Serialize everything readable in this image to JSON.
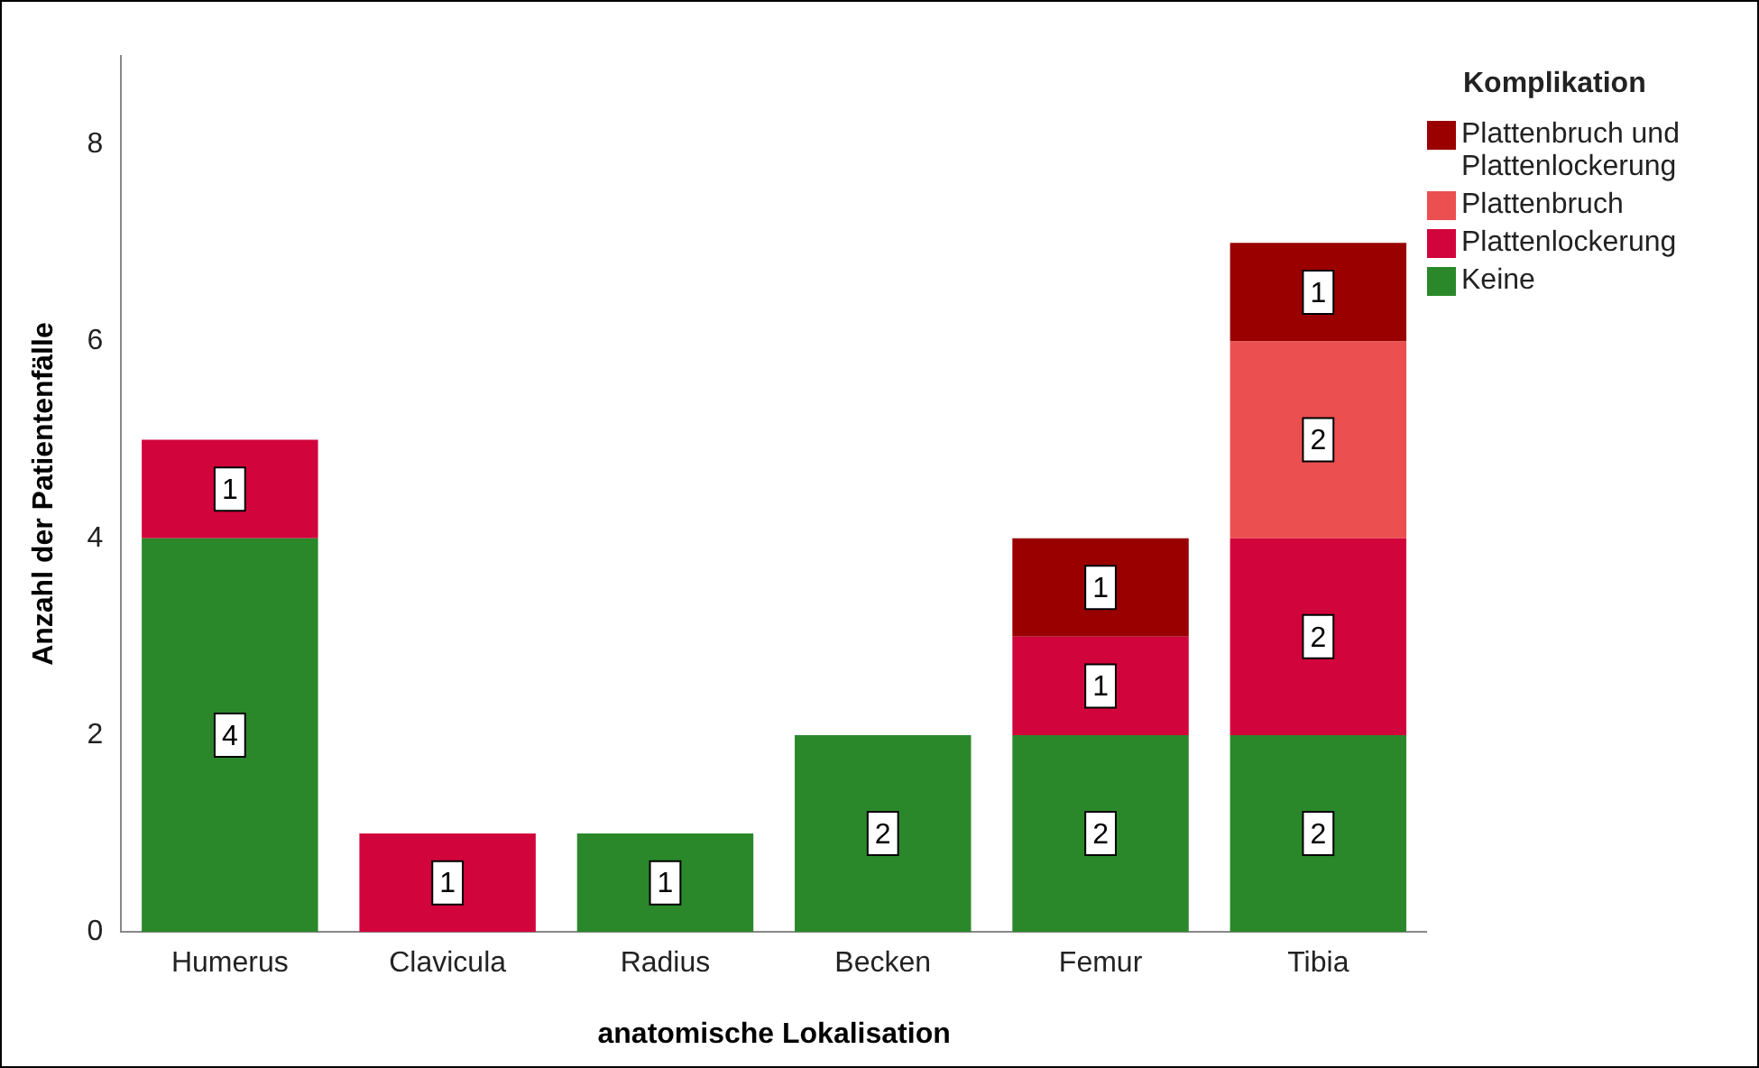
{
  "chart_data": {
    "type": "bar",
    "xlabel": "anatomische Lokalisation",
    "ylabel": "Anzahl der Patientenfälle",
    "legend_title": "Komplikation",
    "categories": [
      "Humerus",
      "Clavicula",
      "Radius",
      "Becken",
      "Femur",
      "Tibia"
    ],
    "series": [
      {
        "name": "Keine",
        "color": "#2a882a",
        "values": [
          4,
          null,
          1,
          2,
          2,
          2
        ]
      },
      {
        "name": "Plattenlockerung",
        "color": "#d2043c",
        "values": [
          1,
          1,
          null,
          null,
          1,
          2
        ]
      },
      {
        "name": "Plattenbruch",
        "color": "#eb4f4f",
        "values": [
          null,
          null,
          null,
          null,
          null,
          2
        ]
      },
      {
        "name": "Plattenbruch und Plattenlockerung",
        "color": "#9a0000",
        "values": [
          null,
          null,
          null,
          null,
          1,
          1
        ]
      }
    ],
    "stacked": true,
    "ylim": [
      0,
      8.9
    ],
    "yticks": [
      0,
      2,
      4,
      6,
      8
    ],
    "grid": false,
    "legend": "top right",
    "data_labels": true
  }
}
